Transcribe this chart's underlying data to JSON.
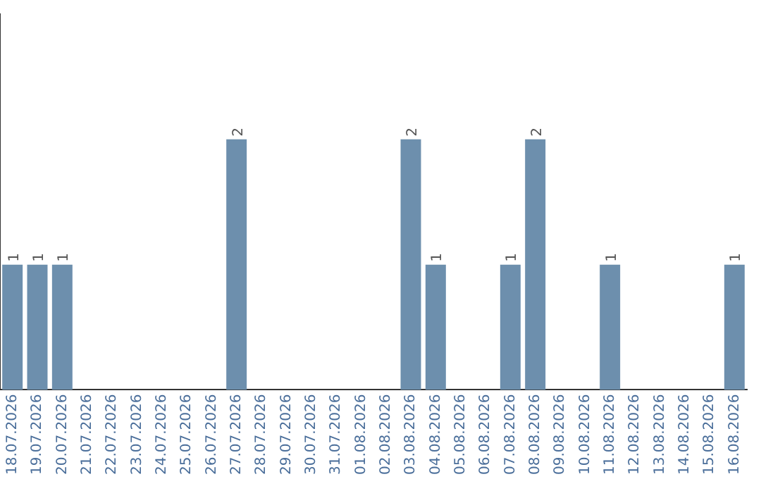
{
  "chart_data": {
    "type": "bar",
    "categories": [
      "18.07.2026",
      "19.07.2026",
      "20.07.2026",
      "21.07.2026",
      "22.07.2026",
      "23.07.2026",
      "24.07.2026",
      "25.07.2026",
      "26.07.2026",
      "27.07.2026",
      "28.07.2026",
      "29.07.2026",
      "30.07.2026",
      "31.07.2026",
      "01.08.2026",
      "02.08.2026",
      "03.08.2026",
      "04.08.2026",
      "05.08.2026",
      "06.08.2026",
      "07.08.2026",
      "08.08.2026",
      "09.08.2026",
      "10.08.2026",
      "11.08.2026",
      "12.08.2026",
      "13.08.2026",
      "14.08.2026",
      "15.08.2026",
      "16.08.2026"
    ],
    "values": [
      1,
      1,
      1,
      0,
      0,
      0,
      0,
      0,
      0,
      2,
      0,
      0,
      0,
      0,
      0,
      0,
      2,
      1,
      0,
      0,
      1,
      2,
      0,
      0,
      1,
      0,
      0,
      0,
      0,
      1
    ],
    "value_labels": [
      "1",
      "1",
      "1",
      null,
      null,
      null,
      null,
      null,
      null,
      "2",
      null,
      null,
      null,
      null,
      null,
      null,
      "2",
      "1",
      null,
      null,
      "1",
      "2",
      null,
      null,
      "1",
      null,
      null,
      null,
      null,
      "1"
    ],
    "color": "#6d8fad",
    "grid": false,
    "legend": false,
    "tick_labels": "x"
  }
}
